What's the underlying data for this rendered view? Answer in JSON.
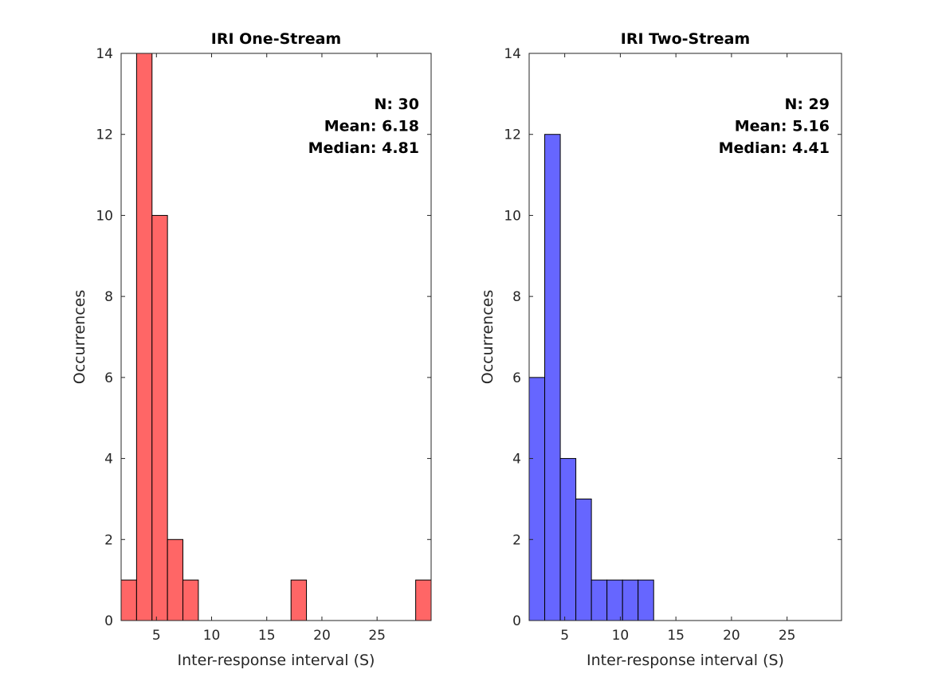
{
  "chart_data": [
    {
      "type": "bar",
      "title": "IRI One-Stream",
      "xlabel": "Inter-response interval (S)",
      "ylabel": "Occurrences",
      "xlim": [
        1.8,
        29.9
      ],
      "ylim": [
        0,
        14
      ],
      "xticks": [
        5,
        10,
        15,
        20,
        25
      ],
      "yticks": [
        0,
        2,
        4,
        6,
        8,
        10,
        12,
        14
      ],
      "grid": false,
      "color": "#ff6666",
      "bins": [
        {
          "x0": 1.8,
          "x1": 3.2,
          "count": 1
        },
        {
          "x0": 3.2,
          "x1": 4.6,
          "count": 14
        },
        {
          "x0": 4.6,
          "x1": 6.0,
          "count": 10
        },
        {
          "x0": 6.0,
          "x1": 7.4,
          "count": 2
        },
        {
          "x0": 7.4,
          "x1": 8.8,
          "count": 1
        },
        {
          "x0": 17.2,
          "x1": 18.6,
          "count": 1
        },
        {
          "x0": 28.5,
          "x1": 29.9,
          "count": 1
        }
      ],
      "stats": [
        "N: 30",
        "Mean: 6.18",
        "Median: 4.81"
      ]
    },
    {
      "type": "bar",
      "title": "IRI Two-Stream",
      "xlabel": "Inter-response interval (S)",
      "ylabel": "Occurrences",
      "xlim": [
        1.8,
        29.9
      ],
      "ylim": [
        0,
        14
      ],
      "xticks": [
        5,
        10,
        15,
        20,
        25
      ],
      "yticks": [
        0,
        2,
        4,
        6,
        8,
        10,
        12,
        14
      ],
      "grid": false,
      "color": "#6666ff",
      "bins": [
        {
          "x0": 1.8,
          "x1": 3.2,
          "count": 6
        },
        {
          "x0": 3.2,
          "x1": 4.6,
          "count": 12
        },
        {
          "x0": 4.6,
          "x1": 6.0,
          "count": 4
        },
        {
          "x0": 6.0,
          "x1": 7.4,
          "count": 3
        },
        {
          "x0": 7.4,
          "x1": 8.8,
          "count": 1
        },
        {
          "x0": 8.8,
          "x1": 10.2,
          "count": 1
        },
        {
          "x0": 10.2,
          "x1": 11.6,
          "count": 1
        },
        {
          "x0": 11.6,
          "x1": 13.0,
          "count": 1
        }
      ],
      "stats": [
        "N: 29",
        "Mean: 5.16",
        "Median: 4.41"
      ]
    }
  ]
}
